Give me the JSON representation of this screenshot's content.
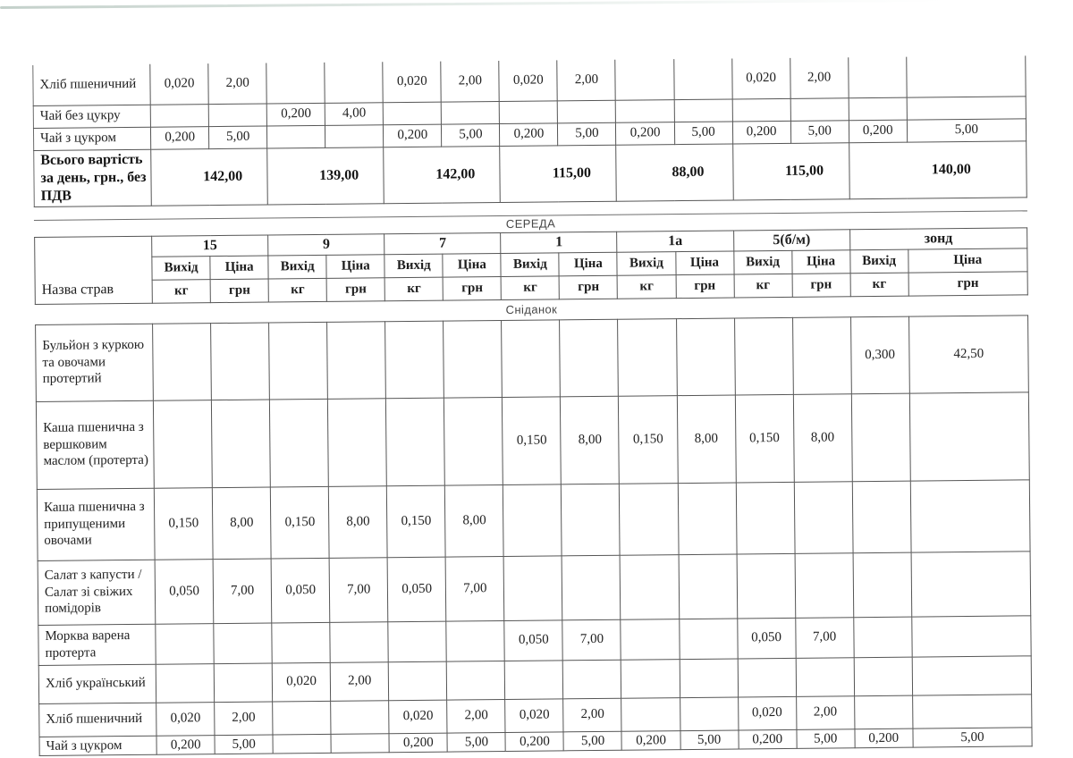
{
  "day_header": "СЕРЕДА",
  "meal_header": "Сніданок",
  "columns": {
    "name_header": "Назва страв",
    "groups": [
      "15",
      "9",
      "7",
      "1",
      "1а",
      "5(б/м)",
      "зонд"
    ],
    "sub_top": [
      "Вихід",
      "Ціна"
    ],
    "sub_bottom": [
      "кг",
      "грн"
    ]
  },
  "top_table": {
    "rows": [
      {
        "name": "Хліб пшеничний",
        "values": [
          "0,020",
          "2,00",
          "",
          "",
          "0,020",
          "2,00",
          "0,020",
          "2,00",
          "",
          "",
          "0,020",
          "2,00",
          "",
          ""
        ]
      },
      {
        "name": "Чай без цукру",
        "values": [
          "",
          "",
          "0,200",
          "4,00",
          "",
          "",
          "",
          "",
          "",
          "",
          "",
          "",
          "",
          ""
        ]
      },
      {
        "name": "Чай з цукром",
        "values": [
          "0,200",
          "5,00",
          "",
          "",
          "0,200",
          "5,00",
          "0,200",
          "5,00",
          "0,200",
          "5,00",
          "0,200",
          "5,00",
          "0,200",
          "5,00"
        ]
      }
    ],
    "total_row": {
      "name": "Всього вартість за день, грн., без ПДВ",
      "values": [
        "142,00",
        "139,00",
        "142,00",
        "115,00",
        "88,00",
        "115,00",
        "140,00"
      ]
    }
  },
  "breakfast_table": {
    "rows": [
      {
        "name": "Бульйон з куркою та овочами протертий",
        "values": [
          "",
          "",
          "",
          "",
          "",
          "",
          "",
          "",
          "",
          "",
          "",
          "",
          "0,300",
          "42,50"
        ]
      },
      {
        "name": "Каша пшенична з вершковим маслом (протерта)",
        "values": [
          "",
          "",
          "",
          "",
          "",
          "",
          "0,150",
          "8,00",
          "0,150",
          "8,00",
          "0,150",
          "8,00",
          "",
          ""
        ]
      },
      {
        "name": "Каша пшенична з припущеними овочами",
        "values": [
          "0,150",
          "8,00",
          "0,150",
          "8,00",
          "0,150",
          "8,00",
          "",
          "",
          "",
          "",
          "",
          "",
          "",
          ""
        ]
      },
      {
        "name": "Салат з капусти / Салат зі свіжих помідорів",
        "values": [
          "0,050",
          "7,00",
          "0,050",
          "7,00",
          "0,050",
          "7,00",
          "",
          "",
          "",
          "",
          "",
          "",
          "",
          ""
        ]
      },
      {
        "name": "Морква варена протерта",
        "values": [
          "",
          "",
          "",
          "",
          "",
          "",
          "0,050",
          "7,00",
          "",
          "",
          "0,050",
          "7,00",
          "",
          ""
        ]
      },
      {
        "name": "Хліб український",
        "values": [
          "",
          "",
          "0,020",
          "2,00",
          "",
          "",
          "",
          "",
          "",
          "",
          "",
          "",
          "",
          ""
        ]
      },
      {
        "name": "Хліб пшеничний",
        "values": [
          "0,020",
          "2,00",
          "",
          "",
          "0,020",
          "2,00",
          "0,020",
          "2,00",
          "",
          "",
          "0,020",
          "2,00",
          "",
          ""
        ]
      },
      {
        "name": "Чай з цукром",
        "values": [
          "0,200",
          "5,00",
          "",
          "",
          "0,200",
          "5,00",
          "0,200",
          "5,00",
          "0,200",
          "5,00",
          "0,200",
          "5,00",
          "0,200",
          "5,00"
        ]
      }
    ]
  },
  "colors": {
    "ink": "#222222",
    "grid_line": "#565656",
    "band_text": "#474747",
    "paper": "#ffffff",
    "scan_artifact": "#cfdcd6"
  }
}
